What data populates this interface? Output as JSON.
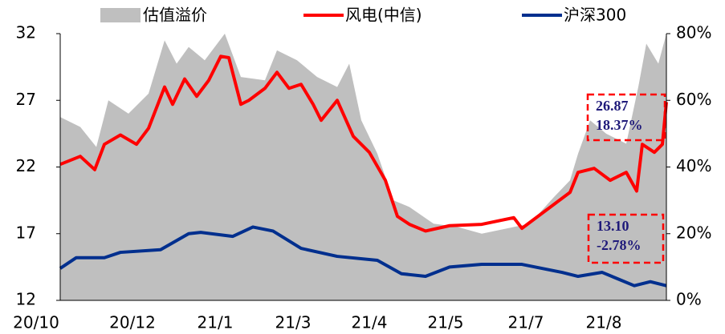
{
  "chart_data": {
    "type": "line",
    "xlim": [
      0,
      785
    ],
    "xticks": [
      {
        "value": 0,
        "label": "20/10"
      },
      {
        "value": 120,
        "label": "20/12"
      },
      {
        "value": 223,
        "label": "21/1"
      },
      {
        "value": 320,
        "label": "21/3"
      },
      {
        "value": 415,
        "label": "21/4"
      },
      {
        "value": 510,
        "label": "21/5"
      },
      {
        "value": 610,
        "label": "21/7"
      },
      {
        "value": 707,
        "label": "21/8"
      }
    ],
    "ylim": [
      12,
      32
    ],
    "yticks": [
      12,
      17,
      22,
      27,
      32
    ],
    "y2lim": [
      0,
      80
    ],
    "y2ticks": [
      {
        "value": 0,
        "label": "0%"
      },
      {
        "value": 20,
        "label": "20%"
      },
      {
        "value": 40,
        "label": "40%"
      },
      {
        "value": 60,
        "label": "60%"
      },
      {
        "value": 80,
        "label": "80%"
      }
    ],
    "series": [
      {
        "name": "估值溢价",
        "type": "area",
        "axis": "y2",
        "color": "#bfbfbf",
        "x": [
          30,
          55,
          75,
          90,
          115,
          140,
          160,
          175,
          190,
          210,
          235,
          255,
          285,
          300,
          325,
          350,
          375,
          390,
          405,
          425,
          445,
          465,
          495,
          525,
          555,
          595,
          615,
          645,
          665,
          675,
          690,
          710,
          735,
          750,
          760,
          775,
          785
        ],
        "values": [
          55,
          52,
          46,
          60,
          56,
          62,
          78,
          71,
          76,
          72,
          80,
          67,
          66,
          75,
          72,
          67,
          64,
          71,
          54,
          44,
          30,
          28,
          23,
          22,
          20,
          22,
          23,
          31,
          36,
          44,
          54,
          50,
          47,
          64,
          77,
          71,
          80
        ]
      },
      {
        "name": "风电(中信)",
        "type": "line",
        "color": "#ff0000",
        "x": [
          30,
          55,
          73,
          85,
          105,
          125,
          140,
          160,
          170,
          185,
          200,
          215,
          230,
          240,
          255,
          265,
          285,
          300,
          315,
          330,
          345,
          355,
          375,
          395,
          415,
          435,
          450,
          465,
          485,
          515,
          555,
          595,
          605,
          625,
          645,
          665,
          675,
          695,
          715,
          735,
          748,
          755,
          770,
          780,
          785
        ],
        "values": [
          22.2,
          22.8,
          21.8,
          23.7,
          24.4,
          23.7,
          24.9,
          28.0,
          26.7,
          28.6,
          27.3,
          28.5,
          30.3,
          30.2,
          26.7,
          27.0,
          27.9,
          29.1,
          27.9,
          28.2,
          26.7,
          25.5,
          27.0,
          24.3,
          23.1,
          21.0,
          18.3,
          17.7,
          17.2,
          17.6,
          17.7,
          18.2,
          17.4,
          18.3,
          19.2,
          20.1,
          21.6,
          21.9,
          21.0,
          21.6,
          20.2,
          23.7,
          23.1,
          23.7,
          26.87
        ]
      },
      {
        "name": "沪深300",
        "type": "line",
        "color": "#002f8e",
        "x": [
          30,
          50,
          85,
          105,
          155,
          190,
          205,
          245,
          270,
          295,
          330,
          375,
          425,
          455,
          485,
          515,
          555,
          605,
          655,
          675,
          705,
          725,
          745,
          765,
          785
        ],
        "values": [
          14.4,
          15.2,
          15.2,
          15.6,
          15.8,
          17.0,
          17.1,
          16.8,
          17.5,
          17.2,
          15.9,
          15.3,
          15.0,
          14.0,
          13.8,
          14.5,
          14.7,
          14.7,
          14.1,
          13.8,
          14.1,
          13.6,
          13.1,
          13.4,
          13.1
        ]
      }
    ],
    "annotations": [
      [
        "26.87",
        "18.37%"
      ],
      [
        "13.10",
        "-2.78%"
      ]
    ]
  }
}
